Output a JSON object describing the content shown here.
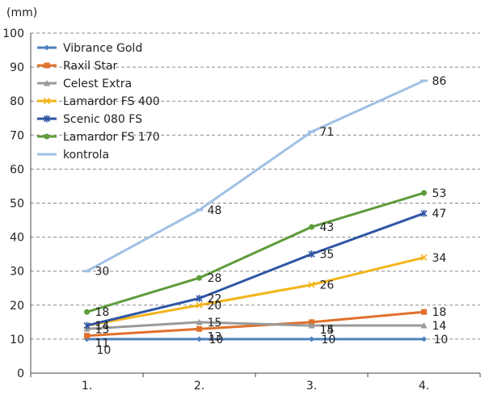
{
  "chart_data": {
    "type": "line",
    "title": "",
    "ylabel": "(mm)",
    "xlabel": "",
    "ylim": [
      0,
      100
    ],
    "ytick_step": 10,
    "grid": true,
    "legend_position": "top-left",
    "categories": [
      "1.",
      "2.",
      "3.",
      "4."
    ],
    "series": [
      {
        "name": "Vibrance Gold",
        "color": "#4e81bd",
        "marker": "diamond",
        "values": [
          10,
          10,
          10,
          10
        ]
      },
      {
        "name": "Raxil Star",
        "color": "#e0702a",
        "marker": "square",
        "values": [
          11,
          13,
          15,
          18
        ]
      },
      {
        "name": "Celest Extra",
        "color": "#9a9a9a",
        "marker": "triangle",
        "values": [
          13,
          15,
          14,
          14
        ]
      },
      {
        "name": "Lamardor FS 400",
        "color": "#f2b418",
        "marker": "x",
        "values": [
          14,
          20,
          26,
          34
        ]
      },
      {
        "name": "Scenic 080 FS",
        "color": "#2f55a4",
        "marker": "star",
        "values": [
          14,
          22,
          35,
          47
        ]
      },
      {
        "name": "Lamardor FS 170",
        "color": "#5e9c3b",
        "marker": "circle",
        "values": [
          18,
          28,
          43,
          53
        ]
      },
      {
        "name": "kontrola",
        "color": "#9fc0e4",
        "marker": "dash",
        "values": [
          30,
          48,
          71,
          86
        ]
      }
    ]
  }
}
